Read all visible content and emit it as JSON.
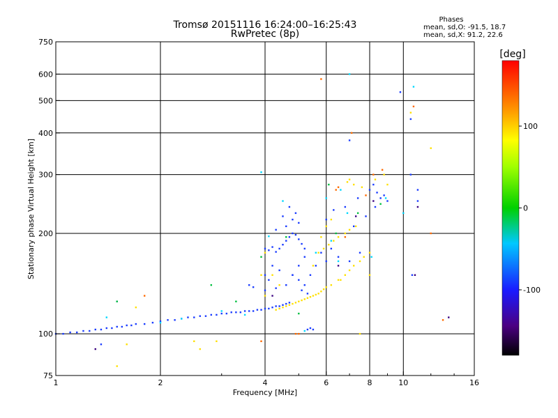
{
  "chart_data": {
    "type": "scatter",
    "title": "Tromsø 20151116 16:24:00–16:25:43",
    "subtitle": "RwPretec (8p)",
    "xlabel": "Frequency [MHz]",
    "ylabel": "Stationary phase Virtual Height [km]",
    "x_scale": "log",
    "y_scale": "log",
    "xlim": [
      1,
      16
    ],
    "ylim": [
      75,
      750
    ],
    "x_ticks": [
      1,
      2,
      4,
      6,
      8,
      10,
      16
    ],
    "x_tick_labels": [
      "1",
      "2",
      "4",
      "6",
      "8",
      "10",
      "16"
    ],
    "y_ticks": [
      75,
      100,
      200,
      300,
      400,
      500,
      600,
      750
    ],
    "y_tick_labels": [
      "75",
      "100",
      "200",
      "300",
      "400",
      "500",
      "600",
      "750"
    ],
    "grid": true,
    "phase_box": {
      "title": "Phases",
      "line_o": "mean, sd,O: -91.5, 18.7",
      "line_x": "mean, sd,X:  91.2, 22.6"
    },
    "colorbar": {
      "label": "[deg]",
      "range": [
        -180,
        180
      ],
      "ticks": [
        100,
        0,
        -100
      ],
      "tick_labels": [
        "100",
        "0",
        "-100"
      ],
      "colormap": "rainbow (black→purple→blue→cyan→green→yellow→orange→red)"
    },
    "series": [
      {
        "description": "O-mode trace (blue, phase ≈ -100°)",
        "color": "#1a3cff",
        "points": [
          [
            1.0,
            100
          ],
          [
            1.05,
            100
          ],
          [
            1.1,
            101
          ],
          [
            1.15,
            101
          ],
          [
            1.2,
            102
          ],
          [
            1.25,
            102
          ],
          [
            1.3,
            103
          ],
          [
            1.35,
            103
          ],
          [
            1.4,
            104
          ],
          [
            1.45,
            104
          ],
          [
            1.5,
            105
          ],
          [
            1.55,
            105
          ],
          [
            1.6,
            106
          ],
          [
            1.65,
            106
          ],
          [
            1.7,
            107
          ],
          [
            1.8,
            107
          ],
          [
            1.9,
            108
          ],
          [
            2.0,
            109
          ],
          [
            2.1,
            110
          ],
          [
            2.2,
            110
          ],
          [
            2.3,
            111
          ],
          [
            2.4,
            112
          ],
          [
            2.5,
            112
          ],
          [
            2.6,
            113
          ],
          [
            2.7,
            113
          ],
          [
            2.8,
            114
          ],
          [
            2.9,
            114
          ],
          [
            3.0,
            115
          ],
          [
            3.1,
            115
          ],
          [
            3.2,
            116
          ],
          [
            3.3,
            116
          ],
          [
            3.4,
            116
          ],
          [
            3.5,
            117
          ],
          [
            3.6,
            117
          ],
          [
            3.7,
            117
          ],
          [
            3.8,
            118
          ],
          [
            3.9,
            118
          ],
          [
            4.0,
            119
          ],
          [
            4.1,
            119
          ],
          [
            4.2,
            120
          ],
          [
            4.3,
            121
          ],
          [
            4.4,
            121
          ],
          [
            4.5,
            122
          ],
          [
            4.6,
            123
          ],
          [
            4.7,
            124
          ],
          [
            4.0,
            180
          ],
          [
            4.1,
            178
          ],
          [
            4.2,
            182
          ],
          [
            4.3,
            176
          ],
          [
            4.4,
            180
          ],
          [
            4.5,
            185
          ],
          [
            4.6,
            190
          ],
          [
            4.7,
            195
          ],
          [
            4.8,
            200
          ],
          [
            4.9,
            198
          ],
          [
            5.0,
            192
          ],
          [
            5.1,
            186
          ],
          [
            5.2,
            180
          ],
          [
            4.6,
            210
          ],
          [
            4.8,
            220
          ],
          [
            5.0,
            215
          ],
          [
            4.9,
            230
          ],
          [
            4.7,
            240
          ],
          [
            4.5,
            225
          ],
          [
            4.3,
            205
          ],
          [
            4.2,
            160
          ],
          [
            4.0,
            150
          ],
          [
            4.1,
            145
          ],
          [
            4.4,
            155
          ],
          [
            4.6,
            140
          ],
          [
            4.8,
            150
          ],
          [
            5.0,
            160
          ],
          [
            5.2,
            170
          ],
          [
            5.4,
            150
          ],
          [
            5.6,
            160
          ],
          [
            5.8,
            175
          ],
          [
            6.0,
            165
          ],
          [
            6.2,
            180
          ],
          [
            6.5,
            170
          ],
          [
            7.0,
            165
          ],
          [
            7.5,
            175
          ],
          [
            3.6,
            140
          ],
          [
            3.7,
            138
          ],
          [
            4.0,
            135
          ],
          [
            4.3,
            137
          ],
          [
            8.0,
            270
          ],
          [
            8.2,
            280
          ],
          [
            8.4,
            265
          ],
          [
            8.6,
            255
          ],
          [
            8.8,
            260
          ],
          [
            9.0,
            250
          ],
          [
            8.3,
            240
          ],
          [
            7.8,
            225
          ],
          [
            7.2,
            210
          ],
          [
            6.8,
            240
          ],
          [
            7.4,
            255
          ],
          [
            6.0,
            220
          ],
          [
            6.3,
            235
          ],
          [
            7.0,
            380
          ],
          [
            9.8,
            530
          ],
          [
            10.5,
            440
          ],
          [
            10.5,
            300
          ],
          [
            11.0,
            250
          ],
          [
            11.0,
            270
          ],
          [
            1.5,
            125
          ],
          [
            1.35,
            93
          ],
          [
            10.6,
            150
          ],
          [
            5.3,
            103
          ],
          [
            5.4,
            104
          ],
          [
            5.5,
            103
          ],
          [
            4.8,
            150
          ],
          [
            5.0,
            145
          ],
          [
            5.1,
            135
          ],
          [
            5.2,
            140
          ],
          [
            5.3,
            132
          ]
        ]
      },
      {
        "description": "X-mode trace (yellow, phase ≈ 90°)",
        "color": "#ffe000",
        "points": [
          [
            4.3,
            118
          ],
          [
            4.4,
            119
          ],
          [
            4.5,
            120
          ],
          [
            4.6,
            121
          ],
          [
            4.7,
            122
          ],
          [
            4.8,
            123
          ],
          [
            4.9,
            124
          ],
          [
            5.0,
            125
          ],
          [
            5.1,
            126
          ],
          [
            5.2,
            127
          ],
          [
            5.3,
            128
          ],
          [
            5.4,
            129
          ],
          [
            5.5,
            130
          ],
          [
            5.6,
            131
          ],
          [
            5.7,
            132
          ],
          [
            5.8,
            134
          ],
          [
            5.9,
            136
          ],
          [
            6.0,
            138
          ],
          [
            6.2,
            140
          ],
          [
            6.5,
            145
          ],
          [
            6.8,
            150
          ],
          [
            7.0,
            155
          ],
          [
            7.2,
            160
          ],
          [
            7.5,
            165
          ],
          [
            7.7,
            170
          ],
          [
            8.0,
            175
          ],
          [
            5.5,
            160
          ],
          [
            5.7,
            175
          ],
          [
            5.9,
            180
          ],
          [
            6.1,
            185
          ],
          [
            6.3,
            190
          ],
          [
            6.5,
            195
          ],
          [
            6.8,
            200
          ],
          [
            7.0,
            205
          ],
          [
            7.3,
            210
          ],
          [
            4.0,
            175
          ],
          [
            3.9,
            150
          ],
          [
            4.0,
            130
          ],
          [
            4.2,
            150
          ],
          [
            4.4,
            140
          ],
          [
            6.9,
            285
          ],
          [
            7.0,
            290
          ],
          [
            7.2,
            280
          ],
          [
            7.6,
            275
          ],
          [
            8.3,
            290
          ],
          [
            8.8,
            300
          ],
          [
            9.0,
            280
          ],
          [
            10.5,
            460
          ],
          [
            6.0,
            210
          ],
          [
            6.2,
            220
          ],
          [
            5.8,
            195
          ],
          [
            1.6,
            93
          ],
          [
            1.5,
            80
          ],
          [
            1.7,
            120
          ],
          [
            2.5,
            95
          ],
          [
            2.6,
            90
          ],
          [
            2.9,
            95
          ],
          [
            12.0,
            360
          ],
          [
            7.5,
            100
          ],
          [
            8.0,
            150
          ],
          [
            6.6,
            145
          ]
        ]
      },
      {
        "description": "Scattered noise (cyan)",
        "color": "#00d8ff",
        "points": [
          [
            1.4,
            112
          ],
          [
            2.0,
            108
          ],
          [
            3.0,
            117
          ],
          [
            3.9,
            305
          ],
          [
            4.1,
            196
          ],
          [
            6.2,
            190
          ],
          [
            6.6,
            270
          ],
          [
            7.0,
            600
          ],
          [
            6.9,
            230
          ],
          [
            8.1,
            170
          ],
          [
            8.9,
            255
          ],
          [
            10.0,
            230
          ],
          [
            10.7,
            550
          ],
          [
            5.2,
            102
          ],
          [
            5.6,
            175
          ],
          [
            6.5,
            165
          ],
          [
            3.5,
            114
          ],
          [
            2.3,
            111
          ],
          [
            4.5,
            250
          ],
          [
            6.0,
            255
          ]
        ]
      },
      {
        "description": "Scattered noise (green)",
        "color": "#00c040",
        "points": [
          [
            2.8,
            140
          ],
          [
            3.3,
            125
          ],
          [
            3.9,
            170
          ],
          [
            4.6,
            195
          ],
          [
            6.1,
            280
          ],
          [
            8.6,
            245
          ],
          [
            6.4,
            200
          ],
          [
            5.0,
            115
          ],
          [
            1.5,
            125
          ],
          [
            7.4,
            230
          ]
        ]
      },
      {
        "description": "Scattered noise (orange/red)",
        "color": "#ff6a00",
        "points": [
          [
            4.9,
            100
          ],
          [
            5.0,
            100
          ],
          [
            5.8,
            580
          ],
          [
            6.4,
            270
          ],
          [
            6.5,
            275
          ],
          [
            7.1,
            400
          ],
          [
            8.2,
            300
          ],
          [
            8.7,
            310
          ],
          [
            10.7,
            480
          ],
          [
            12.0,
            200
          ],
          [
            3.9,
            95
          ],
          [
            6.8,
            195
          ],
          [
            7.8,
            260
          ],
          [
            13.0,
            110
          ],
          [
            1.8,
            130
          ]
        ]
      },
      {
        "description": "Scattered noise (purple/dark)",
        "color": "#3a0080",
        "points": [
          [
            1.3,
            90
          ],
          [
            10.8,
            150
          ],
          [
            11.0,
            240
          ],
          [
            8.2,
            250
          ],
          [
            13.5,
            112
          ],
          [
            4.2,
            130
          ],
          [
            6.5,
            160
          ],
          [
            7.3,
            225
          ]
        ]
      }
    ]
  }
}
